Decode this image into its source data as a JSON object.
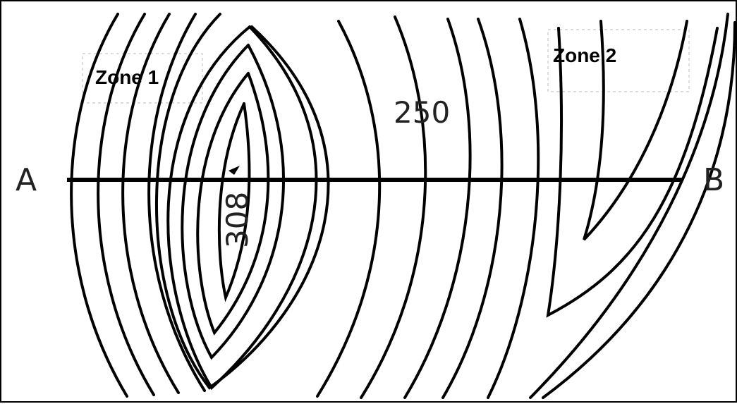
{
  "map": {
    "endpoint_start": "A",
    "endpoint_end": "B",
    "contour_label_250": "250",
    "peak_label": "308",
    "zones": [
      {
        "label": "Zone 1"
      },
      {
        "label": "Zone 2"
      }
    ]
  },
  "colors": {
    "line": "#000000",
    "background": "#ffffff"
  }
}
